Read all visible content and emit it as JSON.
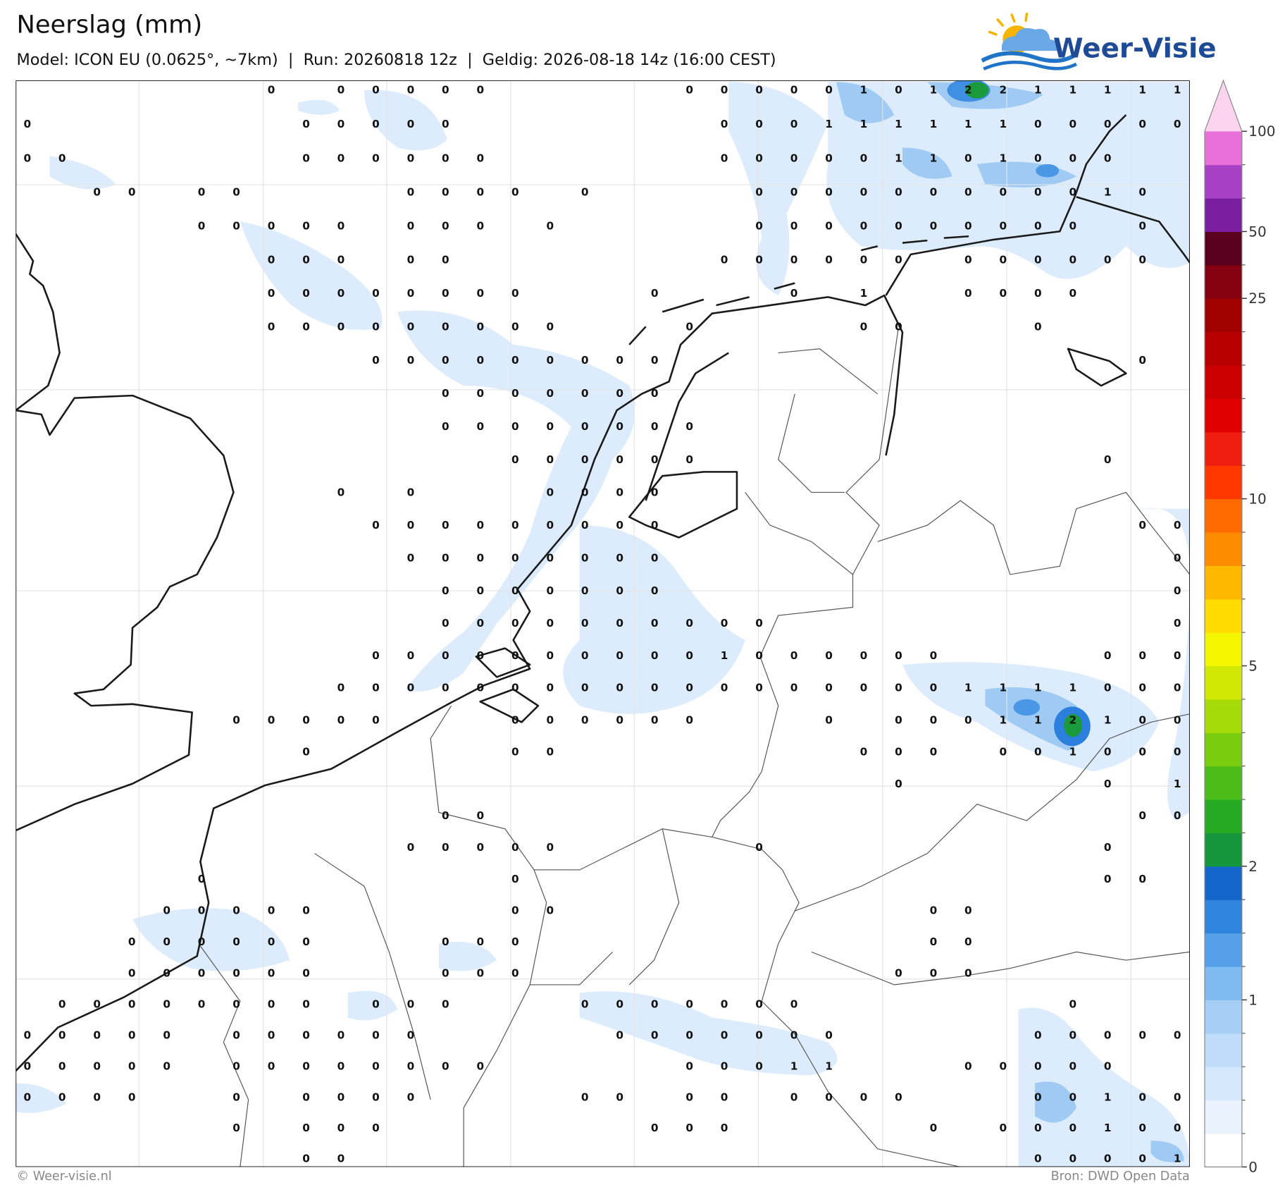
{
  "header": {
    "title": "Neerslag (mm)",
    "subtitle": "Model: ICON EU (0.0625°, ~7km)  |  Run: 20260818 12z  |  Geldig: 2026-08-18 14z (16:00 CEST)",
    "logo": "Weer-Visie"
  },
  "map": {
    "grid_values": [
      [
        null,
        null,
        null,
        null,
        null,
        null,
        null,
        0,
        null,
        0,
        0,
        0,
        0,
        0,
        null,
        null,
        null,
        null,
        null,
        0,
        0,
        0,
        0,
        0,
        1,
        0,
        1,
        2,
        2,
        1,
        1,
        1,
        1,
        1
      ],
      [
        0,
        null,
        null,
        null,
        null,
        null,
        null,
        null,
        0,
        0,
        0,
        0,
        0,
        null,
        null,
        null,
        null,
        null,
        null,
        null,
        0,
        0,
        0,
        1,
        1,
        1,
        1,
        1,
        1,
        0,
        0,
        0,
        0,
        0
      ],
      [
        0,
        0,
        null,
        null,
        null,
        null,
        null,
        null,
        0,
        0,
        0,
        0,
        0,
        0,
        null,
        null,
        null,
        null,
        null,
        null,
        0,
        0,
        0,
        0,
        0,
        1,
        1,
        0,
        1,
        0,
        0,
        0,
        null,
        null
      ],
      [
        null,
        null,
        0,
        0,
        null,
        0,
        0,
        null,
        null,
        null,
        null,
        0,
        0,
        0,
        0,
        null,
        0,
        null,
        null,
        null,
        null,
        0,
        0,
        0,
        0,
        0,
        0,
        0,
        0,
        0,
        0,
        1,
        0,
        null
      ],
      [
        null,
        null,
        null,
        null,
        null,
        0,
        0,
        0,
        0,
        0,
        null,
        0,
        0,
        0,
        null,
        0,
        null,
        null,
        null,
        null,
        null,
        0,
        0,
        0,
        0,
        0,
        0,
        0,
        0,
        0,
        0,
        null,
        0,
        null
      ],
      [
        null,
        null,
        null,
        null,
        null,
        null,
        null,
        0,
        0,
        0,
        null,
        0,
        0,
        null,
        null,
        null,
        null,
        null,
        null,
        null,
        0,
        0,
        0,
        0,
        0,
        0,
        null,
        0,
        0,
        0,
        0,
        0,
        0,
        null
      ],
      [
        null,
        null,
        null,
        null,
        null,
        null,
        null,
        0,
        0,
        0,
        0,
        0,
        0,
        0,
        0,
        null,
        null,
        null,
        0,
        null,
        null,
        null,
        0,
        null,
        1,
        null,
        null,
        0,
        0,
        0,
        0,
        null,
        null,
        null
      ],
      [
        null,
        null,
        null,
        null,
        null,
        null,
        null,
        0,
        0,
        0,
        0,
        0,
        0,
        0,
        0,
        0,
        null,
        null,
        null,
        0,
        null,
        null,
        null,
        null,
        0,
        0,
        null,
        null,
        null,
        0,
        null,
        null,
        null,
        null
      ],
      [
        null,
        null,
        null,
        null,
        null,
        null,
        null,
        null,
        null,
        null,
        0,
        0,
        0,
        0,
        0,
        0,
        0,
        0,
        0,
        null,
        null,
        null,
        null,
        null,
        null,
        null,
        null,
        null,
        null,
        null,
        null,
        null,
        0,
        null
      ],
      [
        null,
        null,
        null,
        null,
        null,
        null,
        null,
        null,
        null,
        null,
        null,
        null,
        0,
        0,
        0,
        0,
        0,
        0,
        0,
        null,
        null,
        null,
        null,
        null,
        null,
        null,
        null,
        null,
        null,
        null,
        null,
        null,
        null,
        null
      ],
      [
        null,
        null,
        null,
        null,
        null,
        null,
        null,
        null,
        null,
        null,
        null,
        null,
        0,
        0,
        0,
        0,
        0,
        0,
        0,
        0,
        null,
        null,
        null,
        null,
        null,
        null,
        null,
        null,
        null,
        null,
        null,
        null,
        null,
        null
      ],
      [
        null,
        null,
        null,
        null,
        null,
        null,
        null,
        null,
        null,
        null,
        null,
        null,
        null,
        null,
        0,
        0,
        0,
        0,
        0,
        0,
        null,
        null,
        null,
        null,
        null,
        null,
        null,
        null,
        null,
        null,
        null,
        0,
        null,
        null
      ],
      [
        null,
        null,
        null,
        null,
        null,
        null,
        null,
        null,
        null,
        0,
        null,
        0,
        null,
        null,
        null,
        0,
        0,
        0,
        0,
        null,
        null,
        null,
        null,
        null,
        null,
        null,
        null,
        null,
        null,
        null,
        null,
        null,
        null,
        null
      ],
      [
        null,
        null,
        null,
        null,
        null,
        null,
        null,
        null,
        null,
        null,
        0,
        0,
        0,
        0,
        0,
        0,
        0,
        0,
        0,
        null,
        null,
        null,
        null,
        null,
        null,
        null,
        null,
        null,
        null,
        null,
        null,
        null,
        0,
        0
      ],
      [
        null,
        null,
        null,
        null,
        null,
        null,
        null,
        null,
        null,
        null,
        null,
        0,
        0,
        0,
        0,
        0,
        0,
        0,
        0,
        null,
        null,
        null,
        null,
        null,
        null,
        null,
        null,
        null,
        null,
        null,
        null,
        null,
        null,
        0
      ],
      [
        null,
        null,
        null,
        null,
        null,
        null,
        null,
        null,
        null,
        null,
        null,
        null,
        0,
        0,
        0,
        0,
        0,
        0,
        0,
        null,
        null,
        null,
        null,
        null,
        null,
        null,
        null,
        null,
        null,
        null,
        null,
        null,
        null,
        0
      ],
      [
        null,
        null,
        null,
        null,
        null,
        null,
        null,
        null,
        null,
        null,
        null,
        null,
        0,
        0,
        0,
        0,
        0,
        0,
        0,
        0,
        0,
        0,
        null,
        null,
        null,
        null,
        null,
        null,
        null,
        null,
        null,
        null,
        null,
        0
      ],
      [
        null,
        null,
        null,
        null,
        null,
        null,
        null,
        null,
        null,
        null,
        0,
        0,
        0,
        0,
        0,
        0,
        0,
        0,
        0,
        0,
        1,
        0,
        0,
        0,
        0,
        0,
        0,
        null,
        null,
        null,
        null,
        0,
        0,
        0
      ],
      [
        null,
        null,
        null,
        null,
        null,
        null,
        null,
        null,
        null,
        0,
        0,
        0,
        0,
        0,
        0,
        0,
        0,
        0,
        0,
        0,
        0,
        0,
        0,
        0,
        0,
        0,
        0,
        1,
        1,
        1,
        1,
        0,
        0,
        0
      ],
      [
        null,
        null,
        null,
        null,
        null,
        null,
        0,
        0,
        0,
        0,
        0,
        null,
        null,
        null,
        0,
        0,
        0,
        0,
        0,
        0,
        null,
        null,
        null,
        0,
        null,
        0,
        0,
        0,
        1,
        1,
        2,
        1,
        0,
        0
      ],
      [
        null,
        null,
        null,
        null,
        null,
        null,
        null,
        null,
        0,
        null,
        null,
        null,
        null,
        null,
        0,
        0,
        null,
        null,
        null,
        null,
        null,
        null,
        null,
        null,
        0,
        0,
        0,
        null,
        0,
        0,
        1,
        0,
        0,
        0
      ],
      [
        null,
        null,
        null,
        null,
        null,
        null,
        null,
        null,
        null,
        null,
        null,
        null,
        null,
        null,
        null,
        null,
        null,
        null,
        null,
        null,
        null,
        null,
        null,
        null,
        null,
        0,
        null,
        null,
        null,
        null,
        null,
        0,
        null,
        1
      ],
      [
        null,
        null,
        null,
        null,
        null,
        null,
        null,
        null,
        null,
        null,
        null,
        null,
        0,
        0,
        null,
        null,
        null,
        null,
        null,
        null,
        null,
        null,
        null,
        null,
        null,
        null,
        null,
        null,
        null,
        null,
        null,
        null,
        0,
        0
      ],
      [
        null,
        null,
        null,
        null,
        null,
        null,
        null,
        null,
        null,
        null,
        null,
        0,
        0,
        0,
        0,
        0,
        null,
        null,
        null,
        null,
        null,
        0,
        null,
        null,
        null,
        null,
        null,
        null,
        null,
        null,
        null,
        0,
        null,
        null
      ],
      [
        null,
        null,
        null,
        null,
        null,
        0,
        null,
        null,
        null,
        null,
        null,
        null,
        null,
        null,
        0,
        null,
        null,
        null,
        null,
        null,
        null,
        null,
        null,
        null,
        null,
        null,
        null,
        null,
        null,
        null,
        null,
        0,
        0,
        null
      ],
      [
        null,
        null,
        null,
        null,
        0,
        0,
        0,
        0,
        0,
        null,
        null,
        null,
        null,
        null,
        0,
        0,
        null,
        null,
        null,
        null,
        null,
        null,
        null,
        null,
        null,
        null,
        0,
        0,
        null,
        null,
        null,
        null,
        null,
        null
      ],
      [
        null,
        null,
        null,
        0,
        0,
        0,
        0,
        0,
        0,
        null,
        null,
        null,
        0,
        0,
        0,
        null,
        null,
        null,
        null,
        null,
        null,
        null,
        null,
        null,
        null,
        null,
        0,
        0,
        null,
        null,
        null,
        null,
        null,
        null
      ],
      [
        null,
        null,
        null,
        0,
        0,
        0,
        0,
        0,
        0,
        null,
        null,
        null,
        0,
        0,
        0,
        null,
        null,
        null,
        null,
        null,
        null,
        null,
        null,
        null,
        null,
        0,
        0,
        0,
        null,
        null,
        null,
        null,
        null,
        null
      ],
      [
        null,
        0,
        0,
        0,
        0,
        0,
        0,
        0,
        0,
        null,
        0,
        0,
        0,
        null,
        null,
        null,
        0,
        0,
        0,
        0,
        0,
        0,
        0,
        null,
        null,
        null,
        null,
        null,
        null,
        null,
        0,
        null,
        null,
        null
      ],
      [
        0,
        0,
        0,
        0,
        0,
        null,
        0,
        0,
        0,
        0,
        0,
        0,
        null,
        null,
        null,
        null,
        null,
        0,
        0,
        0,
        0,
        0,
        0,
        0,
        null,
        null,
        null,
        null,
        null,
        0,
        0,
        0,
        0,
        0
      ],
      [
        0,
        0,
        0,
        0,
        0,
        null,
        0,
        0,
        0,
        0,
        0,
        0,
        0,
        0,
        null,
        null,
        null,
        null,
        null,
        0,
        0,
        0,
        1,
        1,
        null,
        null,
        null,
        0,
        0,
        0,
        0,
        0,
        null,
        null
      ],
      [
        0,
        0,
        0,
        0,
        null,
        null,
        0,
        null,
        0,
        0,
        0,
        0,
        null,
        null,
        null,
        null,
        0,
        0,
        null,
        0,
        0,
        null,
        0,
        0,
        0,
        0,
        null,
        null,
        null,
        0,
        0,
        1,
        0,
        0
      ],
      [
        null,
        null,
        null,
        null,
        null,
        null,
        0,
        null,
        0,
        0,
        0,
        null,
        null,
        null,
        null,
        null,
        null,
        null,
        0,
        0,
        0,
        null,
        null,
        null,
        null,
        null,
        0,
        null,
        0,
        0,
        0,
        1,
        0,
        0
      ],
      [
        null,
        null,
        null,
        null,
        null,
        null,
        null,
        null,
        0,
        0,
        null,
        null,
        null,
        null,
        null,
        null,
        null,
        null,
        null,
        null,
        null,
        null,
        null,
        null,
        null,
        null,
        null,
        null,
        null,
        0,
        0,
        0,
        0,
        1
      ]
    ]
  },
  "colorbar": {
    "ticks": [
      0,
      1,
      2,
      5,
      10,
      25,
      50,
      100
    ],
    "colors": [
      "#ffffff",
      "#eaf3fd",
      "#d5e8fb",
      "#bfdcf8",
      "#a6cef5",
      "#7fbbf0",
      "#55a0e8",
      "#2f84de",
      "#1466cc",
      "#16963c",
      "#26aa24",
      "#4cbd18",
      "#79cc0e",
      "#a6da08",
      "#cfe804",
      "#f5f700",
      "#ffdc00",
      "#ffb800",
      "#ff8c00",
      "#ff6a00",
      "#ff3800",
      "#f01e0e",
      "#e00000",
      "#cc0000",
      "#b80000",
      "#a00000",
      "#850010",
      "#5c0020",
      "#7a1ea0",
      "#a840c4",
      "#e870d8",
      "#fcd4f0"
    ]
  },
  "footer": {
    "copyright": "© Weer-visie.nl",
    "source": "Bron: DWD Open Data"
  }
}
